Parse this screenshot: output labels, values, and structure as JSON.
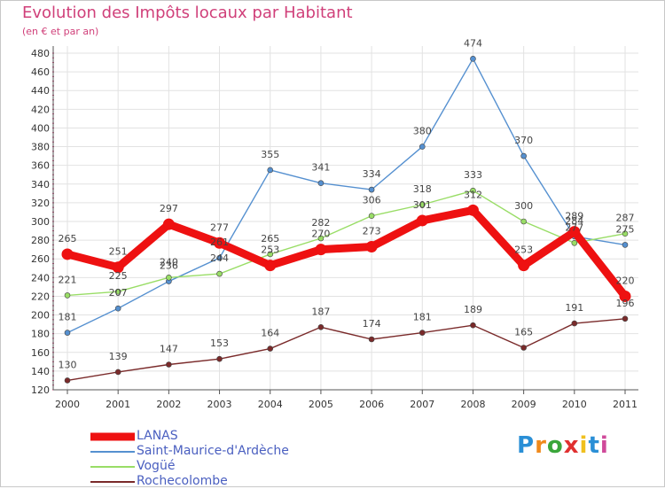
{
  "title": "Evolution des Impôts locaux par Habitant",
  "subtitle": "(en € et par an)",
  "logo": {
    "text": "Proxiti",
    "colors": [
      "#2a8fd6",
      "#f08a1c",
      "#3aa63a",
      "#e03030",
      "#f0c020",
      "#2a8fd6",
      "#d04a9a"
    ]
  },
  "colors": {
    "title": "#d0407a",
    "axis_text": "#333333",
    "grid": "#e2e2e2",
    "legend_text": "#4a5fc0"
  },
  "chart_data": {
    "type": "line",
    "title": "Evolution des Impôts locaux par Habitant",
    "ylabel": "(en € et par an)",
    "xlabel": "",
    "ylim": [
      120,
      480
    ],
    "yticks": [
      120,
      140,
      160,
      180,
      200,
      220,
      240,
      260,
      280,
      300,
      320,
      340,
      360,
      380,
      400,
      420,
      440,
      460,
      480
    ],
    "categories": [
      "2000",
      "2001",
      "2002",
      "2003",
      "2004",
      "2005",
      "2006",
      "2007",
      "2008",
      "2009",
      "2010",
      "2011"
    ],
    "series": [
      {
        "name": "LANAS",
        "color": "#ee1111",
        "values": [
          265,
          251,
          297,
          277,
          253,
          270,
          273,
          301,
          312,
          253,
          289,
          220
        ],
        "thick": true
      },
      {
        "name": "Saint-Maurice-d'Ardèche",
        "color": "#5590d0",
        "values": [
          181,
          207,
          236,
          261,
          355,
          341,
          334,
          380,
          474,
          370,
          284,
          275
        ]
      },
      {
        "name": "Vogüé",
        "color": "#99dd66",
        "values": [
          221,
          225,
          240,
          244,
          265,
          282,
          306,
          318,
          333,
          300,
          277,
          287
        ]
      },
      {
        "name": "Rochecolombe",
        "color": "#7a2a2a",
        "values": [
          130,
          139,
          147,
          153,
          164,
          187,
          174,
          181,
          189,
          165,
          191,
          196
        ]
      }
    ],
    "legend": [
      "LANAS",
      "Saint-Maurice-d'Ardèche",
      "Vogüé",
      "Rochecolombe"
    ]
  }
}
